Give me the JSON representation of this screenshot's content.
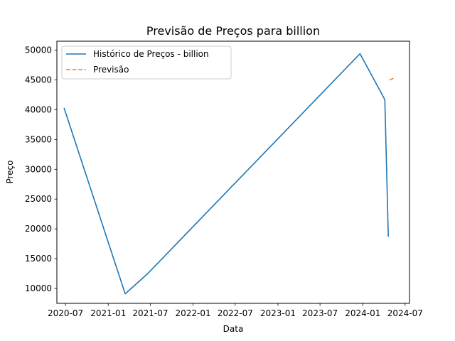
{
  "chart_data": {
    "type": "line",
    "title": "Previsão de Preços para billion",
    "xlabel": "Data",
    "ylabel": "Preço",
    "x_ticks": [
      "2020-07",
      "2021-01",
      "2021-07",
      "2022-01",
      "2022-07",
      "2023-01",
      "2023-07",
      "2024-01",
      "2024-07"
    ],
    "y_ticks": [
      "10000",
      "15000",
      "20000",
      "25000",
      "30000",
      "35000",
      "40000",
      "45000",
      "50000"
    ],
    "ylim": [
      7500,
      51500
    ],
    "xlim": [
      "2020-05-25",
      "2024-07-20"
    ],
    "grid": false,
    "legend_position": "top-left",
    "series": [
      {
        "name": "Histórico de Preços - billion",
        "color": "#1f77b4",
        "style": "solid",
        "points": [
          {
            "x": "2020-06-25",
            "y": 40300
          },
          {
            "x": "2021-03-15",
            "y": 9100
          },
          {
            "x": "2021-06-20",
            "y": 12500
          },
          {
            "x": "2023-12-20",
            "y": 49400
          },
          {
            "x": "2024-04-05",
            "y": 41700
          },
          {
            "x": "2024-04-20",
            "y": 18700
          }
        ]
      },
      {
        "name": "Previsão",
        "color": "#ff7f0e",
        "style": "dashed",
        "points": [
          {
            "x": "2024-04-25",
            "y": 45000
          },
          {
            "x": "2024-05-20",
            "y": 45400
          }
        ]
      }
    ]
  }
}
